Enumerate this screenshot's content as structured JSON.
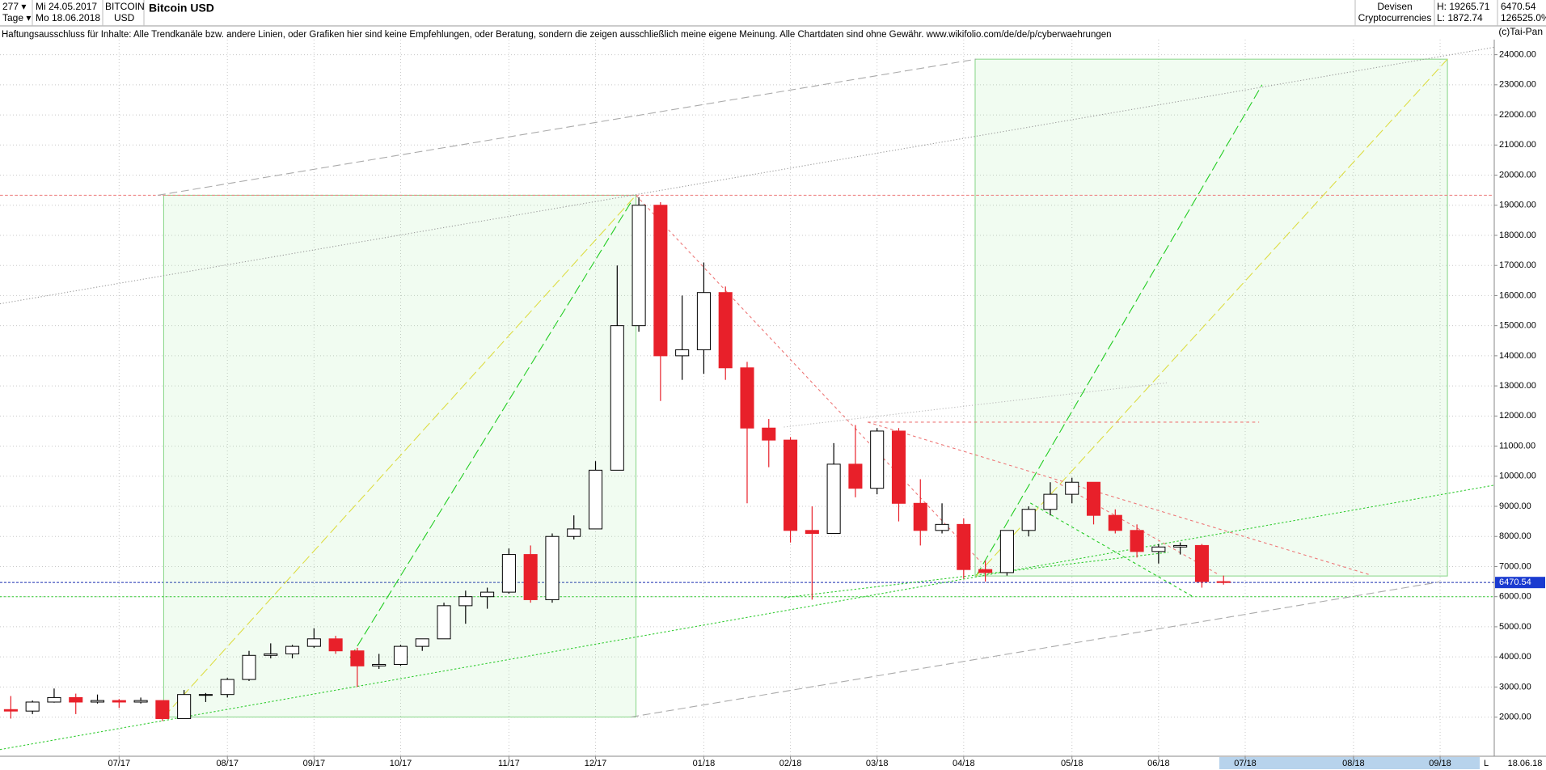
{
  "header": {
    "count": "277 ▾",
    "period": "Tage ▾",
    "start_date": "Mi 24.05.2017",
    "end_date": "Mo 18.06.2018",
    "symbol": "BITCOIN",
    "currency": "USD",
    "title": "Bitcoin USD",
    "market": "Devisen",
    "group": "Cryptocurrencies",
    "high": "H: 19265.71",
    "low": "L: 1872.74",
    "change": "126525.0%",
    "disclaimer": "Haftungsausschluss für Inhalte: Alle Trendkanäle bzw. andere Linien, oder Grafiken hier sind keine Empfehlungen, oder Beratung, sondern die zeigen ausschließlich meine eigene Meinung. Alle Chartdaten sind ohne Gewähr.  www.wikifolio.com/de/de/p/cyberwaehrungen",
    "copyright": "(c)Tai-Pan",
    "footer_date": "18.06.18",
    "footer_scale": "L"
  },
  "chart_data": {
    "type": "candlestick",
    "categories": [
      null,
      null,
      null,
      null,
      null,
      "07/17",
      null,
      null,
      null,
      null,
      "08/17",
      null,
      null,
      null,
      "09/17",
      null,
      null,
      null,
      "10/17",
      null,
      null,
      null,
      null,
      "11/17",
      null,
      null,
      null,
      "12/17",
      null,
      null,
      null,
      null,
      "01/18",
      null,
      null,
      null,
      "02/18",
      null,
      null,
      null,
      "03/18",
      null,
      null,
      null,
      "04/18",
      null,
      null,
      null,
      null,
      "05/18",
      null,
      null,
      null,
      "06/18",
      null,
      null,
      null,
      "07/18",
      null,
      null,
      null,
      null,
      "08/18",
      null,
      null,
      null,
      "09/18",
      null,
      null
    ],
    "open": [
      2250,
      2200,
      2500,
      2650,
      2500,
      2550,
      2500,
      2550,
      1950,
      2750,
      2750,
      3250,
      4050,
      4100,
      4350,
      4600,
      4200,
      3700,
      3750,
      4350,
      4600,
      5700,
      6000,
      6150,
      7400,
      5900,
      8000,
      8250,
      10200,
      15000,
      19000,
      14000,
      14200,
      16100,
      13600,
      11600,
      11200,
      8200,
      8100,
      10400,
      9600,
      11500,
      9100,
      8200,
      8400,
      6900,
      6800,
      8200,
      8900,
      9400,
      9800,
      8700,
      8200,
      7500,
      7650,
      7700,
      6500,
      null,
      null,
      null,
      null,
      null,
      null,
      null,
      null,
      null,
      null,
      null,
      null
    ],
    "high": [
      2700,
      2550,
      2950,
      2780,
      2750,
      2600,
      2650,
      2550,
      2900,
      2800,
      3300,
      4200,
      4450,
      4400,
      4950,
      4700,
      4300,
      4100,
      4400,
      4600,
      5800,
      6200,
      6300,
      7600,
      7700,
      8100,
      8700,
      10500,
      17000,
      19265.71,
      19100,
      16000,
      17100,
      16300,
      13800,
      11900,
      11300,
      9000,
      11100,
      11700,
      11600,
      11600,
      9900,
      9100,
      8600,
      7200,
      8200,
      9000,
      9800,
      9950,
      9800,
      8900,
      8400,
      7750,
      7800,
      7750,
      6700,
      null,
      null,
      null,
      null,
      null,
      null,
      null,
      null,
      null,
      null,
      null,
      null
    ],
    "low": [
      1950,
      2100,
      2480,
      2100,
      2450,
      2300,
      2450,
      1872.74,
      1950,
      2500,
      2650,
      3200,
      3950,
      3950,
      4300,
      4100,
      3000,
      3600,
      3700,
      4200,
      4600,
      5100,
      5600,
      6100,
      5800,
      5800,
      7900,
      8250,
      10200,
      14800,
      12500,
      13200,
      13400,
      13200,
      9100,
      10300,
      7800,
      5900,
      8100,
      9300,
      9400,
      8500,
      7700,
      8100,
      6600,
      6500,
      6700,
      8000,
      8700,
      9100,
      8400,
      8100,
      7300,
      7100,
      7400,
      6300,
      6400,
      null,
      null,
      null,
      null,
      null,
      null,
      null,
      null,
      null,
      null,
      null,
      null
    ],
    "close": [
      2200,
      2500,
      2650,
      2500,
      2550,
      2500,
      2550,
      1950,
      2750,
      2750,
      3250,
      4050,
      4100,
      4350,
      4600,
      4200,
      3700,
      3750,
      4350,
      4600,
      5700,
      6000,
      6150,
      7400,
      5900,
      8000,
      8250,
      10200,
      15000,
      19000,
      14000,
      14200,
      16100,
      13600,
      11600,
      11200,
      8200,
      8100,
      10400,
      9600,
      11500,
      9100,
      8200,
      8400,
      6900,
      6800,
      8200,
      8900,
      9400,
      9800,
      8700,
      8200,
      7500,
      7650,
      7700,
      6500,
      6470.54,
      null,
      null,
      null,
      null,
      null,
      null,
      null,
      null,
      null,
      null,
      null,
      null
    ],
    "up_color": "#ffffff",
    "down_color": "#e8202a",
    "last_price": 6470.54,
    "ylim": [
      700,
      24500
    ],
    "yticks": [
      {
        "value": 2000,
        "label": "2000.00"
      },
      {
        "value": 3000,
        "label": "3000.00"
      },
      {
        "value": 4000,
        "label": "4000.00"
      },
      {
        "value": 5000,
        "label": "5000.00"
      },
      {
        "value": 6000,
        "label": "6000.00"
      },
      {
        "value": 7000,
        "label": "7000.00"
      },
      {
        "value": 8000,
        "label": "8000.00"
      },
      {
        "value": 9000,
        "label": "9000.00"
      },
      {
        "value": 10000,
        "label": "10000.00"
      },
      {
        "value": 11000,
        "label": "11000.00"
      },
      {
        "value": 12000,
        "label": "12000.00"
      },
      {
        "value": 13000,
        "label": "13000.00"
      },
      {
        "value": 14000,
        "label": "14000.00"
      },
      {
        "value": 15000,
        "label": "15000.00"
      },
      {
        "value": 16000,
        "label": "16000.00"
      },
      {
        "value": 17000,
        "label": "17000.00"
      },
      {
        "value": 18000,
        "label": "18000.00"
      },
      {
        "value": 19000,
        "label": "19000.00"
      },
      {
        "value": 20000,
        "label": "20000.00"
      },
      {
        "value": 21000,
        "label": "21000.00"
      },
      {
        "value": 22000,
        "label": "22000.00"
      },
      {
        "value": 23000,
        "label": "23000.00"
      },
      {
        "value": 24000,
        "label": "24000.00"
      }
    ],
    "grid": true
  }
}
